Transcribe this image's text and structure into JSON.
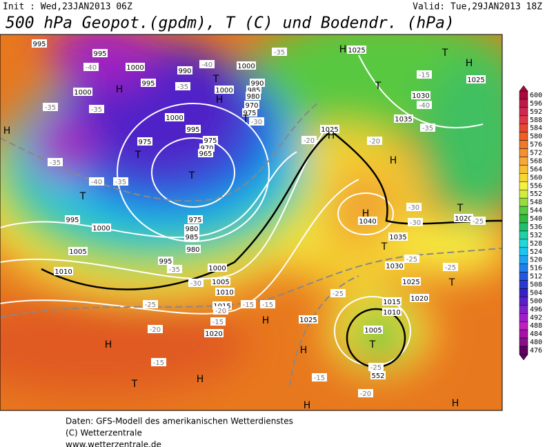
{
  "header": {
    "init": "Init : Wed,23JAN2013 06Z",
    "valid": "Valid: Tue,29JAN2013 18Z",
    "title": "500 hPa Geopot.(gpdm), T (C) und Bodendr. (hPa)"
  },
  "map": {
    "labels": [
      "995",
      "995",
      "-40",
      "1000",
      "990",
      "-40",
      "1000",
      "-35",
      "H",
      "1025",
      "T",
      "H",
      "-15",
      "1025",
      "T",
      "1030",
      "-40",
      "1035",
      "-35",
      "995",
      "-35",
      "T",
      "990",
      "985",
      "980",
      "H",
      "1000",
      "-35",
      "-35",
      "H",
      "1000",
      "970",
      "975",
      "T",
      "-30",
      "1000",
      "995",
      "H",
      "975",
      "T",
      "975",
      "970",
      "965",
      "T",
      "-35",
      "-40",
      "-35",
      "T",
      "1025",
      "H",
      "-20",
      "-20",
      "H",
      "H",
      "1040",
      "-30",
      "-30",
      "T",
      "1020",
      "-25",
      "995",
      "1000",
      "975",
      "980",
      "985",
      "1005",
      "980",
      "1035",
      "T",
      "1010",
      "995",
      "1030",
      "1000",
      "-35",
      "-25",
      "-25",
      "1005",
      "-30",
      "1025",
      "T",
      "1010",
      "-25",
      "1015",
      "-15",
      "-15",
      "-25",
      "1015",
      "1010",
      "1020",
      "H",
      "-20",
      "-15",
      "1025",
      "1005",
      "-20",
      "1020",
      "T",
      "H",
      "H",
      "-25",
      "552",
      "-15",
      "H",
      "-15",
      "T",
      "-20",
      "H",
      "H"
    ]
  },
  "colorbar": {
    "ticks": [
      600,
      596,
      592,
      588,
      584,
      580,
      576,
      572,
      568,
      564,
      560,
      556,
      552,
      548,
      544,
      540,
      536,
      532,
      528,
      524,
      520,
      516,
      512,
      508,
      504,
      500,
      496,
      492,
      488,
      484,
      480,
      476
    ],
    "colors": [
      "#a8083a",
      "#c01848",
      "#d02850",
      "#e03848",
      "#e84830",
      "#f06020",
      "#f07828",
      "#f49030",
      "#f8a838",
      "#f8c030",
      "#f8d830",
      "#f8f040",
      "#d0ec40",
      "#98dc40",
      "#58cc40",
      "#30bc40",
      "#20c070",
      "#20d0a8",
      "#20d8d8",
      "#20c4f0",
      "#20a4f0",
      "#2080f0",
      "#2058e0",
      "#2838d0",
      "#3820c8",
      "#5820c8",
      "#8020c8",
      "#a020c8",
      "#c020c0",
      "#a810a8",
      "#881088",
      "#600060"
    ]
  },
  "footer": {
    "line1": "Daten: GFS-Modell des amerikanischen Wetterdienstes",
    "line2": "(C) Wetterzentrale",
    "line3": "www.wetterzentrale.de"
  }
}
